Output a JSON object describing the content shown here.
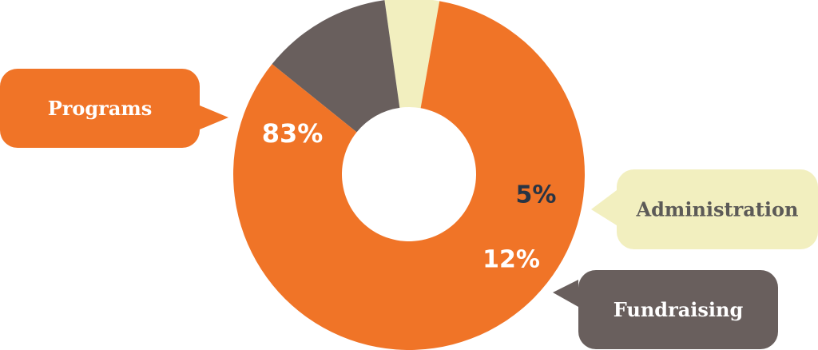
{
  "chart_data": {
    "type": "pie",
    "style": "donut",
    "categories": [
      "Programs",
      "Administration",
      "Fundraising"
    ],
    "values": [
      83,
      5,
      12
    ],
    "value_labels": [
      "83%",
      "5%",
      "12%"
    ],
    "legend": "callouts",
    "colors": {
      "Programs": "#f07427",
      "Administration": "#f2efbf",
      "Fundraising": "#695f5d",
      "label_light": "#ffffff",
      "label_dark": "#283444",
      "label_admin": "#5c5a57"
    }
  }
}
